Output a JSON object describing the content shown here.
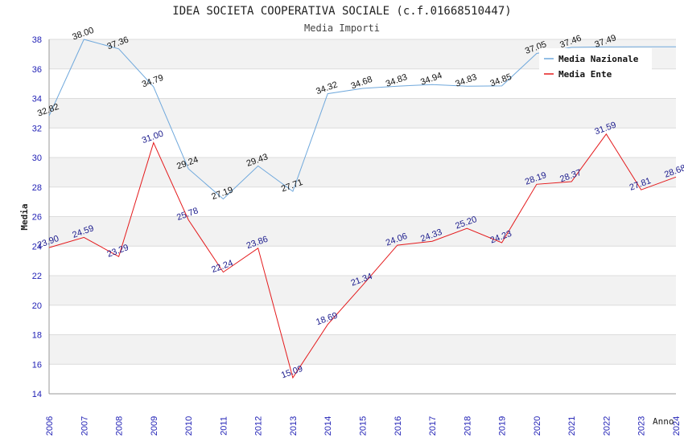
{
  "chart_data": {
    "type": "line",
    "title": "IDEA SOCIETA COOPERATIVA SOCIALE (c.f.01668510447)",
    "subtitle": "Media Importi",
    "xlabel": "Anno",
    "ylabel": "Media",
    "ylim": [
      14,
      38
    ],
    "yticks": [
      14,
      16,
      18,
      20,
      22,
      24,
      26,
      28,
      30,
      32,
      34,
      36,
      38
    ],
    "categories": [
      "2006",
      "2007",
      "2008",
      "2009",
      "2010",
      "2011",
      "2012",
      "2013",
      "2014",
      "2015",
      "2016",
      "2017",
      "2018",
      "2019",
      "2020",
      "2021",
      "2022",
      "2023",
      "2024"
    ],
    "grid": "horizontal bands",
    "legend_position": "top-right",
    "series": [
      {
        "name": "Media Nazionale",
        "color": "#6fa8dc",
        "values": [
          32.82,
          38.0,
          37.36,
          34.79,
          29.24,
          27.19,
          29.43,
          27.71,
          34.32,
          34.68,
          34.83,
          34.94,
          34.83,
          34.85,
          37.05,
          37.46,
          37.49,
          37.5,
          37.5
        ],
        "labels": [
          "32.82",
          "38.00",
          "37.36",
          "34.79",
          "29.24",
          "27.19",
          "29.43",
          "27.71",
          "34.32",
          "34.68",
          "34.83",
          "34.94",
          "34.83",
          "34.85",
          "37.05",
          "37.46",
          "37.49",
          "",
          ""
        ]
      },
      {
        "name": "Media Ente",
        "color": "#e41a1c",
        "values": [
          23.9,
          24.59,
          23.29,
          31.0,
          25.78,
          22.24,
          23.86,
          15.09,
          18.69,
          21.34,
          24.06,
          24.33,
          25.2,
          24.23,
          28.19,
          28.37,
          31.59,
          27.81,
          28.68
        ],
        "labels": [
          "23.90",
          "24.59",
          "23.29",
          "31.00",
          "25.78",
          "22.24",
          "23.86",
          "15.09",
          "18.69",
          "21.34",
          "24.06",
          "24.33",
          "25.20",
          "24.23",
          "28.19",
          "28.37",
          "31.59",
          "27.81",
          "28.68"
        ]
      }
    ]
  }
}
